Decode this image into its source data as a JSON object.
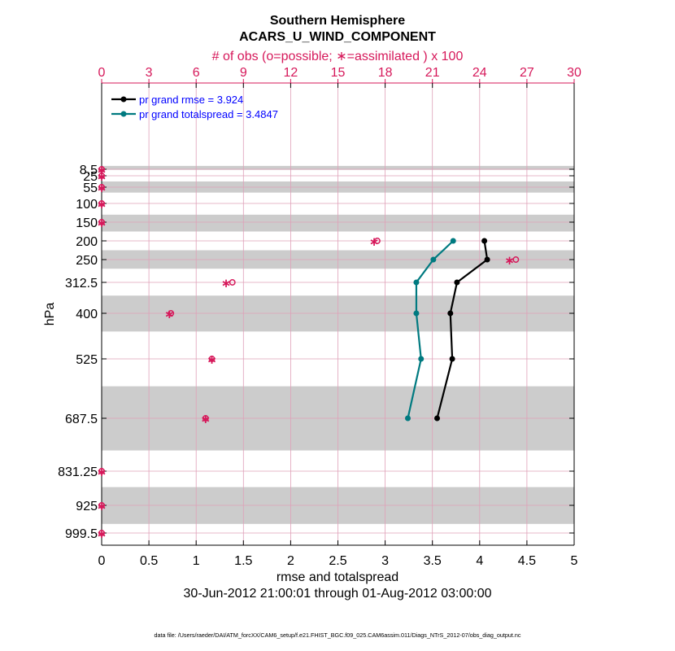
{
  "chart_data": {
    "type": "line",
    "title": "Southern Hemisphere",
    "subtitle": "ACARS_U_WIND_COMPONENT",
    "top_axis_label": "# of obs (o=possible; ∗=assimilated ) x 100",
    "xlabel": "rmse and totalspread",
    "ylabel": "hPa",
    "date_range": "30-Jun-2012 21:00:01 through 01-Aug-2012 03:00:00",
    "footnote": "data file: /Users/raeder/DAI/ATM_forcXX/CAM6_setup/f.e21.FHIST_BGC.f09_025.CAM6assim.011/Diags_NTrS_2012-07/obs_diag_output.nc",
    "xlim": [
      0,
      5
    ],
    "x_ticks": [
      0,
      0.5,
      1,
      1.5,
      2,
      2.5,
      3,
      3.5,
      4,
      4.5,
      5
    ],
    "x_tick_labels": [
      "0",
      "0.5",
      "1",
      "1.5",
      "2",
      "2.5",
      "3",
      "3.5",
      "4",
      "4.5",
      "5"
    ],
    "top_xlim": [
      0,
      30
    ],
    "top_ticks": [
      0,
      3,
      6,
      9,
      12,
      15,
      18,
      21,
      24,
      27,
      30
    ],
    "top_tick_labels": [
      "0",
      "3",
      "6",
      "9",
      "12",
      "15",
      "18",
      "21",
      "24",
      "27",
      "30"
    ],
    "levels": [
      8.5,
      25,
      55,
      100,
      150,
      200,
      250,
      312.5,
      400,
      525,
      687.5,
      831.25,
      925,
      999.5
    ],
    "level_labels": [
      "8.5",
      "25",
      "55",
      "100",
      "150",
      "200",
      "250",
      "312.5",
      "400",
      "525",
      "687.5",
      "831.25",
      "925",
      "999.5"
    ],
    "shaded_bands_hpa": [
      [
        0,
        10
      ],
      [
        40,
        70
      ],
      [
        130,
        175
      ],
      [
        225,
        275
      ],
      [
        350,
        450
      ],
      [
        600,
        775
      ],
      [
        875,
        975
      ]
    ],
    "legend": [
      {
        "label": "pr grand rmse = 3.924",
        "color": "#000000"
      },
      {
        "label": "pr grand totalspread = 3.4847",
        "color": "#007a80"
      }
    ],
    "series": [
      {
        "name": "rmse",
        "color": "#000000",
        "points": [
          [
            4.05,
            200
          ],
          [
            4.08,
            250
          ],
          [
            3.76,
            312.5
          ],
          [
            3.69,
            400
          ],
          [
            3.71,
            525
          ],
          [
            3.55,
            687.5
          ]
        ]
      },
      {
        "name": "totalspread",
        "color": "#007a80",
        "points": [
          [
            3.72,
            200
          ],
          [
            3.51,
            250
          ],
          [
            3.33,
            312.5
          ],
          [
            3.33,
            400
          ],
          [
            3.38,
            525
          ],
          [
            3.24,
            687.5
          ]
        ]
      }
    ],
    "obs_possible": [
      [
        0,
        8.5
      ],
      [
        0,
        25
      ],
      [
        0,
        55
      ],
      [
        0,
        100
      ],
      [
        0,
        150
      ],
      [
        17.5,
        200
      ],
      [
        26.3,
        250
      ],
      [
        8.3,
        312.5
      ],
      [
        4.4,
        400
      ],
      [
        7,
        525
      ],
      [
        6.6,
        687.5
      ],
      [
        0,
        831.25
      ],
      [
        0,
        925
      ],
      [
        0,
        999.5
      ]
    ],
    "obs_assimilated": [
      [
        0,
        8.5
      ],
      [
        0,
        25
      ],
      [
        0,
        55
      ],
      [
        0,
        100
      ],
      [
        0,
        150
      ],
      [
        17.3,
        200
      ],
      [
        25.9,
        250
      ],
      [
        7.9,
        312.5
      ],
      [
        4.3,
        400
      ],
      [
        7,
        525
      ],
      [
        6.6,
        687.5
      ],
      [
        0,
        831.25
      ],
      [
        0,
        925
      ],
      [
        0,
        999.5
      ]
    ],
    "colors": {
      "obs": "#d6185a",
      "grid": "#dfa0b8",
      "band": "#cccccc"
    }
  }
}
